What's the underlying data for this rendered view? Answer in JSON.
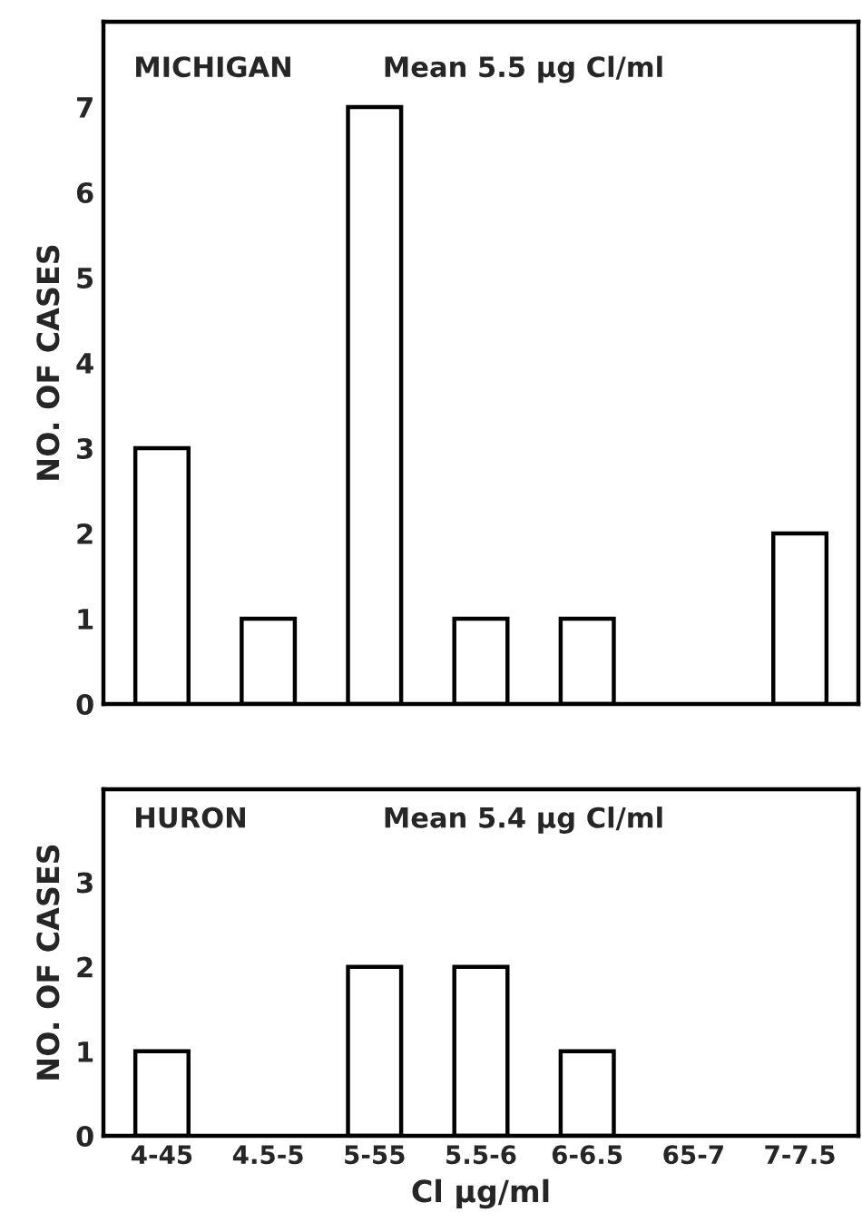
{
  "chart_data": [
    {
      "type": "bar",
      "title": "MICHIGAN",
      "annotations": [
        "Mean 5.5 μg Cl/ml"
      ],
      "ylabel": "NO. OF CASES",
      "categories": [
        null,
        null,
        null,
        null,
        null,
        null,
        null
      ],
      "values": [
        3,
        1,
        7,
        1,
        1,
        0,
        2
      ],
      "color": "#ffffff",
      "ylim": [
        0,
        8
      ],
      "yticks": [
        0,
        1,
        2,
        3,
        4,
        5,
        6,
        7
      ],
      "tick_labels": "y",
      "grid": false
    },
    {
      "type": "bar",
      "title": "HURON",
      "annotations": [
        "Mean 5.4 μg Cl/ml"
      ],
      "ylabel": "NO. OF CASES",
      "xlabel": "Cl μg/ml",
      "categories": [
        "4-45",
        "4.5-5",
        "5-55",
        "5.5-6",
        "6-6.5",
        "65-7",
        "7-7.5"
      ],
      "values": [
        1,
        0,
        2,
        2,
        1,
        0,
        0
      ],
      "color": "#ffffff",
      "ylim": [
        0,
        4.1
      ],
      "yticks": [
        0,
        1,
        2,
        3
      ],
      "grid": false
    }
  ]
}
